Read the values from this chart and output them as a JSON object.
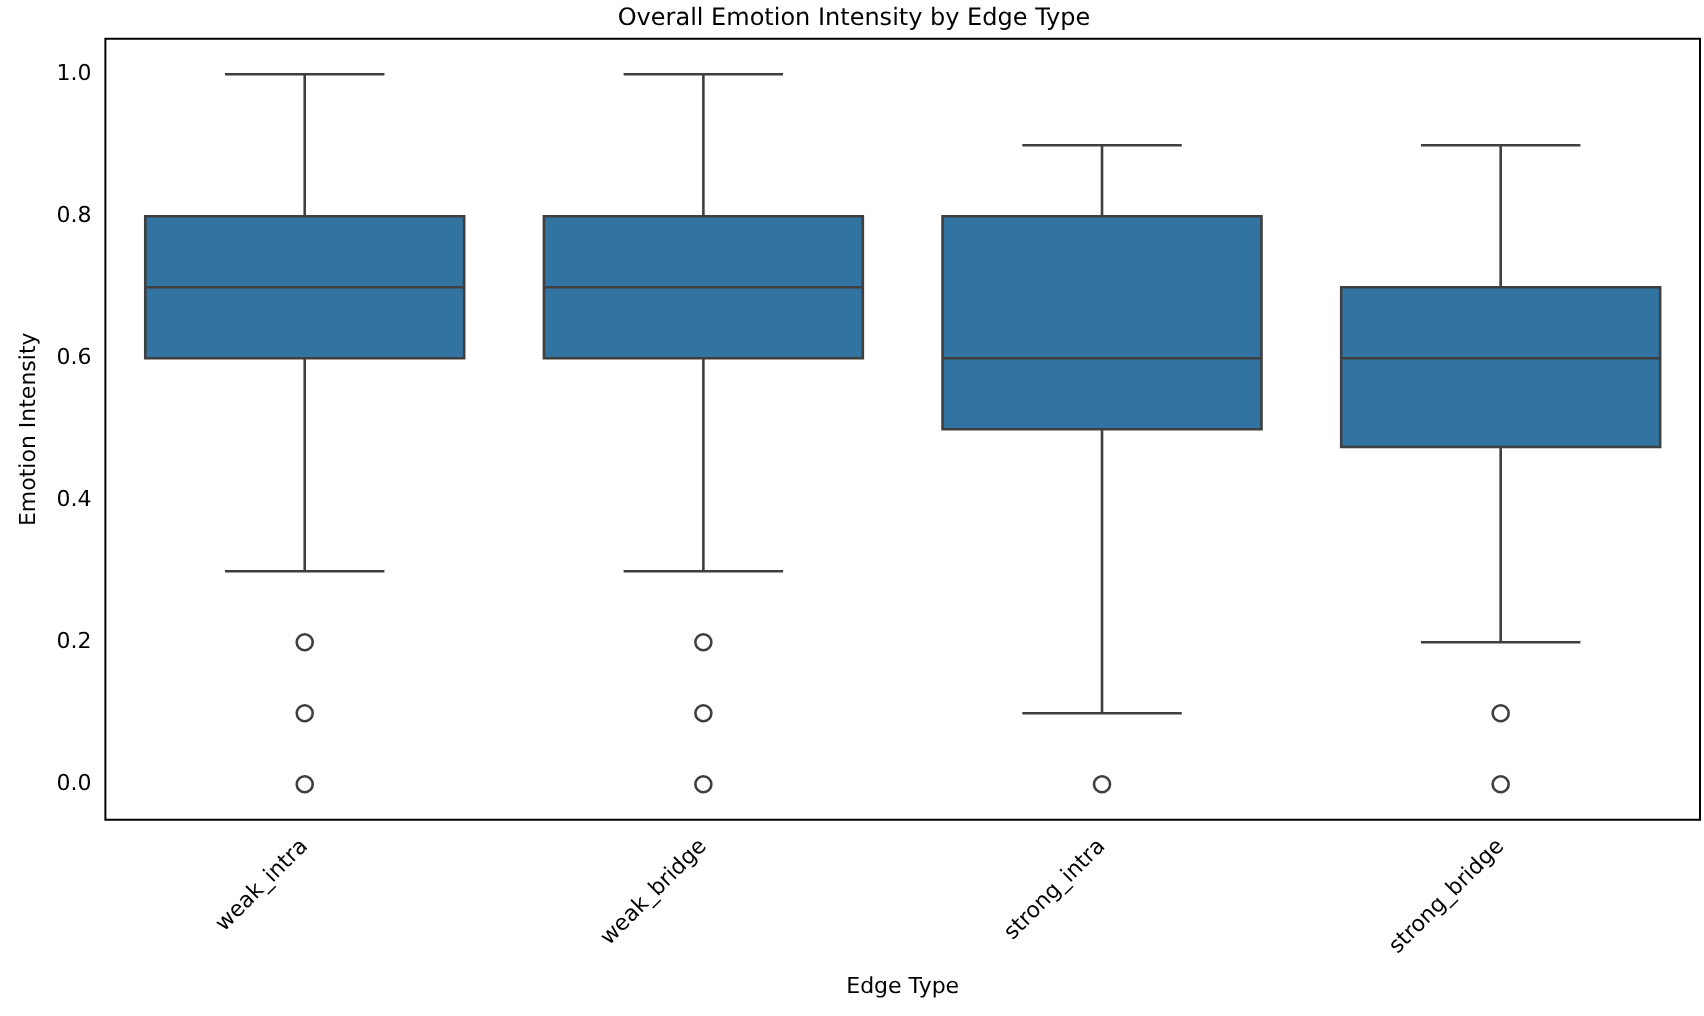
{
  "chart_data": {
    "type": "box",
    "title": "Overall Emotion Intensity by Edge Type",
    "xlabel": "Edge Type",
    "ylabel": "Emotion Intensity",
    "categories": [
      "weak_intra",
      "weak_bridge",
      "strong_intra",
      "strong_bridge"
    ],
    "color": "#3274a1",
    "boxes": [
      {
        "low": 0.3,
        "q1": 0.6,
        "median": 0.7,
        "q3": 0.8,
        "high": 1.0,
        "outliers": [
          0.2,
          0.1,
          0
        ]
      },
      {
        "low": 0.3,
        "q1": 0.6,
        "median": 0.7,
        "q3": 0.8,
        "high": 1.0,
        "outliers": [
          0.2,
          0.1,
          0
        ]
      },
      {
        "low": 0.1,
        "q1": 0.5,
        "median": 0.6,
        "q3": 0.8,
        "high": 0.9,
        "outliers": [
          0
        ]
      },
      {
        "low": 0.2,
        "q1": 0.475,
        "median": 0.6,
        "q3": 0.7,
        "high": 0.9,
        "outliers": [
          0.1,
          0
        ]
      }
    ],
    "ylim": [
      -0.05,
      1.05
    ],
    "yticks": [
      {
        "value": 0,
        "label": "0.0"
      },
      0.2,
      0.4,
      0.6,
      0.8,
      {
        "value": 1,
        "label": "1.0"
      }
    ]
  }
}
